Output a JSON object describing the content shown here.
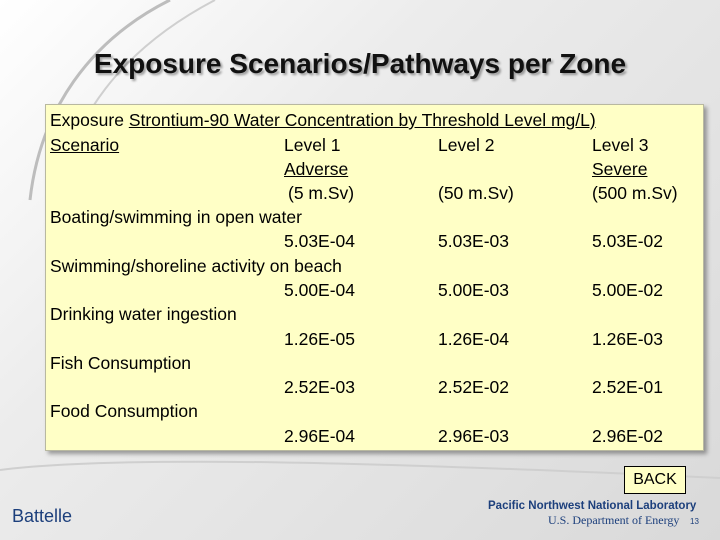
{
  "slide": {
    "title": "Exposure Scenarios/Pathways per Zone",
    "back_label": "BACK",
    "footer": {
      "brand_left": "Battelle",
      "lab_name": "Pacific Northwest National Laboratory",
      "department": "U.S. Department of Energy",
      "page_number": "13"
    }
  },
  "table": {
    "header": {
      "col0_line1": "Exposure",
      "title_rest": "Strontium-90 Water Concentration by Threshold Level mg/L)",
      "col0_line2": "Scenario",
      "levels": [
        {
          "name": "Level 1",
          "severity": "Adverse",
          "dose": "(5 m.Sv)"
        },
        {
          "name": "Level 2",
          "severity": "",
          "dose": "(50 m.Sv)"
        },
        {
          "name": "Level 3",
          "severity": "Severe",
          "dose": "(500 m.Sv)"
        }
      ]
    },
    "rows": [
      {
        "scenario": "Boating/swimming in open water",
        "values": [
          "5.03E-04",
          "5.03E-03",
          "5.03E-02"
        ]
      },
      {
        "scenario": "Swimming/shoreline activity on beach",
        "values": [
          "5.00E-04",
          "5.00E-03",
          "5.00E-02"
        ]
      },
      {
        "scenario": "Drinking water ingestion",
        "values": [
          "1.26E-05",
          "1.26E-04",
          "1.26E-03"
        ]
      },
      {
        "scenario": "Fish Consumption",
        "values": [
          "2.52E-03",
          "2.52E-02",
          "2.52E-01"
        ]
      },
      {
        "scenario": "Food Consumption",
        "values": [
          "2.96E-04",
          "2.96E-03",
          "2.96E-02"
        ]
      }
    ]
  }
}
